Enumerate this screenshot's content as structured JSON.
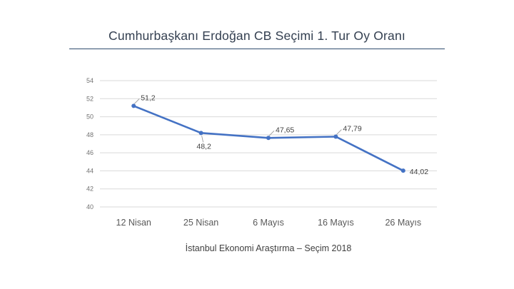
{
  "page": {
    "title": "Cumhurbaşkanı Erdoğan CB Seçimi 1. Tur Oy Oranı",
    "caption": "İstanbul Ekonomi Araştırma – Seçim 2018"
  },
  "colors": {
    "line": "#4472C4",
    "marker": "#4472C4",
    "grid": "#D9D9D9",
    "y_tick_label": "#737373",
    "x_tick_label": "#595959",
    "data_label": "#404040",
    "leader": "#9A9A9A",
    "title": "#333F50",
    "title_rule": "#2E4C6E",
    "background": "#FFFFFF"
  },
  "chart_data": {
    "type": "line",
    "title": "Cumhurbaşkanı Erdoğan CB Seçimi 1. Tur Oy Oranı",
    "categories": [
      "12 Nisan",
      "25 Nisan",
      "6 Mayıs",
      "16 Mayıs",
      "26 Mayıs"
    ],
    "values": [
      51.2,
      48.2,
      47.65,
      47.79,
      44.02
    ],
    "value_labels": [
      "51,2",
      "48,2",
      "47,65",
      "47,79",
      "44,02"
    ],
    "label_placement": [
      "above-right",
      "below",
      "above-right",
      "above-right",
      "right"
    ],
    "xlabel": "",
    "ylabel": "",
    "ylim": [
      40,
      54
    ],
    "yticks": [
      40,
      42,
      44,
      46,
      48,
      50,
      52,
      54
    ],
    "grid": true,
    "legend": "none",
    "marker": "circle",
    "caption": "İstanbul Ekonomi Araştırma – Seçim 2018"
  }
}
